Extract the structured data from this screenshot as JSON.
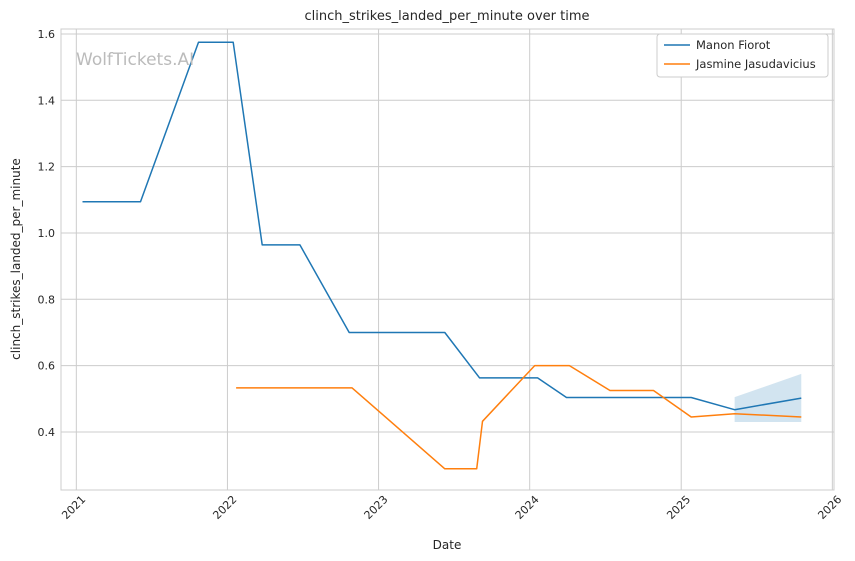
{
  "chart_data": {
    "type": "line",
    "title": "clinch_strikes_landed_per_minute over time",
    "xlabel": "Date",
    "ylabel": "clinch_strikes_landed_per_minute",
    "watermark": "WolfTickets.AI",
    "x_ticks": [
      "2021",
      "2022",
      "2023",
      "2024",
      "2025",
      "2026"
    ],
    "y_ticks": [
      "0.4",
      "0.6",
      "0.8",
      "1.0",
      "1.2",
      "1.4",
      "1.6"
    ],
    "xlim": [
      "2020-11-25",
      "2026-01-05"
    ],
    "ylim": [
      0.225,
      1.615
    ],
    "grid": true,
    "legend_position": "top-right",
    "series": [
      {
        "name": "Manon Fiorot",
        "color": "#1f77b4",
        "points": [
          [
            "2021-01-16",
            1.094
          ],
          [
            "2021-06-05",
            1.094
          ],
          [
            "2021-10-23",
            1.575
          ],
          [
            "2022-01-15",
            1.575
          ],
          [
            "2022-03-26",
            0.964
          ],
          [
            "2022-06-25",
            0.964
          ],
          [
            "2022-10-22",
            0.7
          ],
          [
            "2023-06-10",
            0.7
          ],
          [
            "2023-09-02",
            0.563
          ],
          [
            "2024-01-20",
            0.563
          ],
          [
            "2024-03-30",
            0.504
          ],
          [
            "2025-01-25",
            0.504
          ],
          [
            "2025-05-10",
            0.467
          ],
          [
            "2025-10-18",
            0.502
          ]
        ],
        "band": [
          [
            "2025-05-10",
            0.43,
            0.505
          ],
          [
            "2025-10-18",
            0.43,
            0.575
          ]
        ]
      },
      {
        "name": "Jasmine Jasudavicius",
        "color": "#ff7f0e",
        "points": [
          [
            "2022-01-22",
            0.533
          ],
          [
            "2022-10-29",
            0.533
          ],
          [
            "2023-06-10",
            0.289
          ],
          [
            "2023-08-26",
            0.289
          ],
          [
            "2023-09-09",
            0.432
          ],
          [
            "2024-01-13",
            0.6
          ],
          [
            "2024-04-06",
            0.6
          ],
          [
            "2024-07-13",
            0.525
          ],
          [
            "2024-10-26",
            0.525
          ],
          [
            "2025-01-25",
            0.445
          ],
          [
            "2025-05-10",
            0.455
          ],
          [
            "2025-10-18",
            0.445
          ]
        ]
      }
    ]
  }
}
